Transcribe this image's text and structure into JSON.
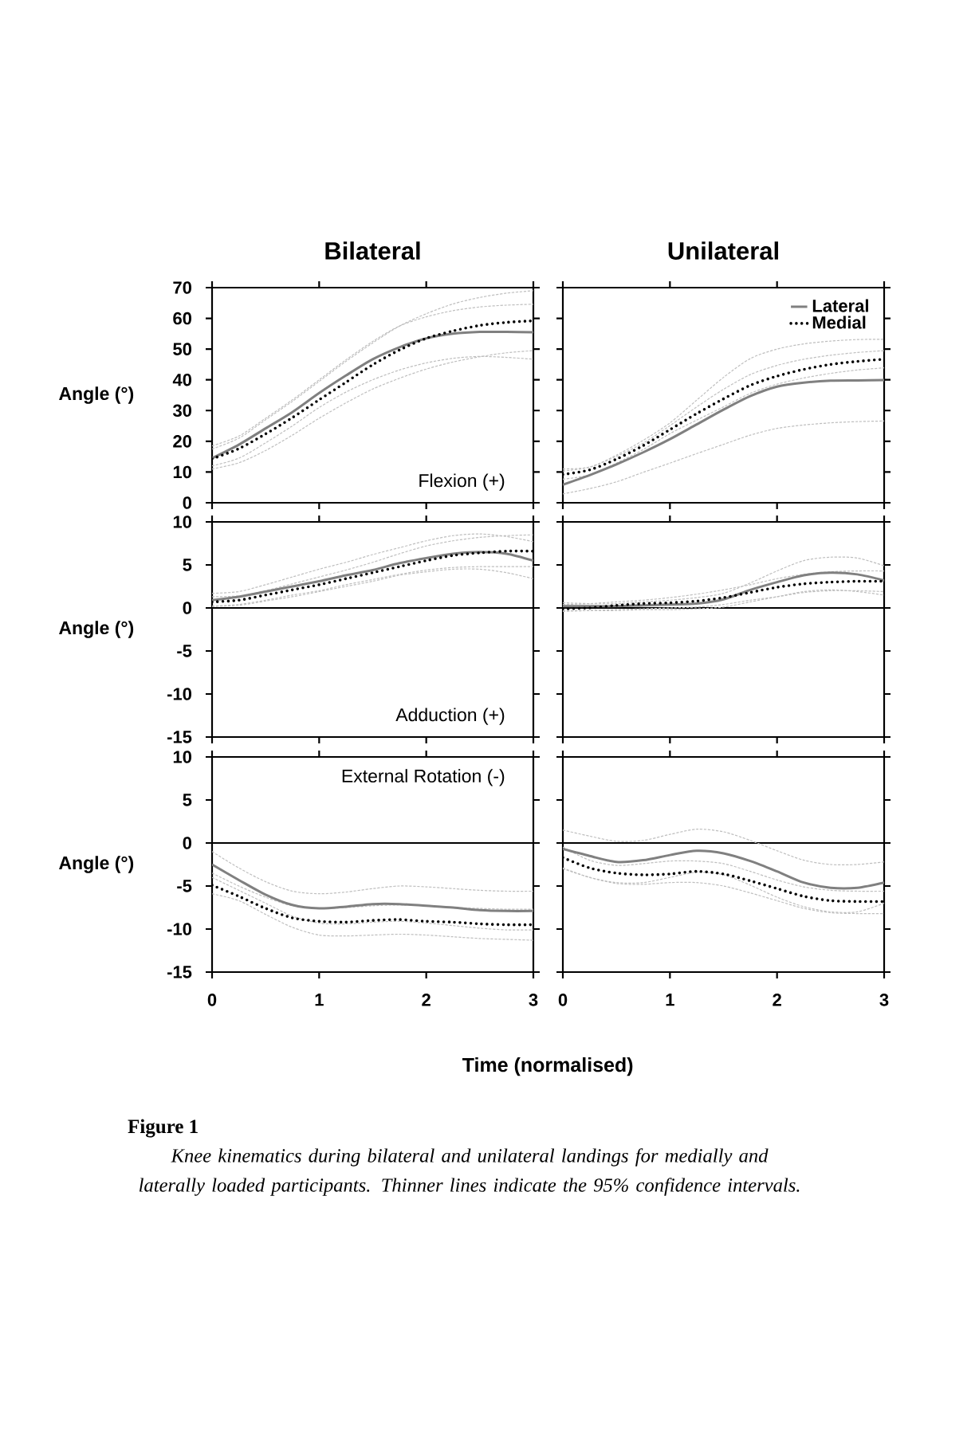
{
  "chart_data": [
    {
      "type": "line",
      "title": "Bilateral",
      "ylabel": "Angle (°)",
      "annotations": [
        "Flexion (+)"
      ],
      "x": [
        0,
        0.25,
        0.5,
        0.75,
        1,
        1.25,
        1.5,
        1.75,
        2,
        2.25,
        2.5,
        2.75,
        3
      ],
      "xlim": [
        0,
        3
      ],
      "xticks": [
        0,
        1,
        2,
        3
      ],
      "ylim": [
        0,
        70
      ],
      "yticks": [
        0,
        10,
        20,
        30,
        40,
        50,
        60,
        70
      ],
      "tick_labels": "y",
      "series": [
        {
          "color": "#bfbfbf",
          "line_style": "dashed",
          "values": [
            18.5,
            21.7,
            27.5,
            33.5,
            40,
            46.5,
            52.5,
            57.5,
            60.5,
            62.5,
            63.7,
            64.3,
            64.6
          ]
        },
        {
          "color": "#bfbfbf",
          "line_style": "dashed",
          "values": [
            12,
            14.5,
            19.5,
            25,
            31,
            36,
            40,
            43.2,
            45.5,
            47,
            47.6,
            47.3,
            46.7
          ]
        },
        {
          "color": "#bfbfbf",
          "line_style": "dashed",
          "values": [
            17.5,
            21,
            27,
            33,
            39.5,
            46,
            52,
            57.5,
            61.5,
            64.7,
            66.8,
            68.2,
            69
          ]
        },
        {
          "color": "#bfbfbf",
          "line_style": "dashed",
          "values": [
            11,
            13,
            17,
            22,
            27.5,
            32.5,
            37,
            40.5,
            43.5,
            45.8,
            47.5,
            48.8,
            49.5
          ]
        },
        {
          "color": "#808080",
          "line_style": "solid",
          "values": [
            14.5,
            18.9,
            24.2,
            29.5,
            35.7,
            41.4,
            46.7,
            50.6,
            53.5,
            55,
            55.6,
            55.6,
            55.5
          ]
        },
        {
          "color": "#000000",
          "line_style": "dotted",
          "values": [
            14.3,
            17.6,
            22.4,
            27.7,
            33.5,
            39.2,
            44.9,
            49.7,
            53.5,
            55.9,
            57.7,
            58.7,
            59.2
          ]
        }
      ]
    },
    {
      "type": "line",
      "title": "Unilateral",
      "x": [
        0,
        0.25,
        0.5,
        0.75,
        1,
        1.25,
        1.5,
        1.75,
        2,
        2.25,
        2.5,
        2.75,
        3
      ],
      "xlim": [
        0,
        3
      ],
      "xticks": [
        0,
        1,
        2,
        3
      ],
      "ylim": [
        0,
        70
      ],
      "yticks": [
        0,
        10,
        20,
        30,
        40,
        50,
        60,
        70
      ],
      "tick_labels": false,
      "legend": "top right",
      "series": [
        {
          "color": "#bfbfbf",
          "line_style": "dashed",
          "values": [
            11,
            11.6,
            15.5,
            20.3,
            26,
            33.4,
            40.8,
            46.9,
            50,
            51.7,
            52.6,
            53.1,
            53.2
          ]
        },
        {
          "color": "#bfbfbf",
          "line_style": "dashed",
          "values": [
            2.9,
            4.6,
            6.8,
            9.9,
            12.9,
            16,
            19,
            22,
            24.2,
            25.3,
            26,
            26.4,
            26.6
          ]
        },
        {
          "color": "#bfbfbf",
          "line_style": "dashed",
          "values": [
            10.3,
            11.6,
            15.1,
            19.4,
            25.1,
            31.2,
            36.9,
            41.7,
            44.7,
            46.7,
            48,
            48.9,
            49.5
          ]
        },
        {
          "color": "#bfbfbf",
          "line_style": "dashed",
          "values": [
            7.7,
            9,
            12.9,
            17.3,
            22.5,
            26.9,
            31.2,
            35.6,
            38.6,
            40.6,
            42.1,
            43.2,
            43.9
          ]
        },
        {
          "name": "Lateral",
          "color": "#808080",
          "line_style": "solid",
          "values": [
            5.9,
            9.0,
            12.5,
            16.4,
            20.7,
            25.5,
            30.3,
            34.7,
            37.8,
            39.1,
            39.7,
            39.8,
            39.9
          ]
        },
        {
          "name": "Medial",
          "color": "#000000",
          "line_style": "dotted",
          "values": [
            9.2,
            10.7,
            14.2,
            18.6,
            23.8,
            29.0,
            33.8,
            38.2,
            41.2,
            43.4,
            45,
            46,
            46.7
          ]
        }
      ]
    },
    {
      "type": "line",
      "ylabel": "Angle (°)",
      "annotations": [
        "Adduction (+)"
      ],
      "x": [
        0,
        0.25,
        0.5,
        0.75,
        1,
        1.25,
        1.5,
        1.75,
        2,
        2.25,
        2.5,
        2.75,
        3
      ],
      "xlim": [
        0,
        3
      ],
      "xticks": [
        0,
        1,
        2,
        3
      ],
      "ylim": [
        -15,
        10
      ],
      "yticks": [
        -15,
        -10,
        -5,
        0,
        5,
        10
      ],
      "tick_labels": "y",
      "ref_lines": [
        {
          "axis": "y",
          "value": 0,
          "color": "#000000"
        }
      ],
      "series": [
        {
          "color": "#bfbfbf",
          "line_style": "dashed",
          "values": [
            1.7,
            1.9,
            2.7,
            3.6,
            4.5,
            5.3,
            6.2,
            7.0,
            7.8,
            8.4,
            8.6,
            8.3,
            7.7
          ]
        },
        {
          "color": "#bfbfbf",
          "line_style": "dashed",
          "values": [
            0.2,
            0.3,
            0.8,
            1.3,
            1.9,
            2.5,
            3.1,
            3.8,
            4.2,
            4.5,
            4.5,
            4.1,
            3.4
          ]
        },
        {
          "color": "#bfbfbf",
          "line_style": "dashed",
          "values": [
            1.3,
            1.4,
            2.0,
            2.8,
            3.6,
            4.4,
            5.3,
            6.3,
            7.2,
            7.8,
            8.2,
            8.4,
            8.5
          ]
        },
        {
          "color": "#bfbfbf",
          "line_style": "dashed",
          "values": [
            0.2,
            0.4,
            0.9,
            1.5,
            2.0,
            2.7,
            3.3,
            3.9,
            4.4,
            4.7,
            4.8,
            4.8,
            4.8
          ]
        },
        {
          "color": "#808080",
          "line_style": "solid",
          "values": [
            0.9,
            1.3,
            1.9,
            2.5,
            3.1,
            3.8,
            4.4,
            5.2,
            5.8,
            6.3,
            6.5,
            6.3,
            5.5
          ]
        },
        {
          "color": "#000000",
          "line_style": "dotted",
          "values": [
            0.7,
            0.9,
            1.5,
            2.1,
            2.7,
            3.4,
            4.1,
            4.8,
            5.5,
            6.1,
            6.4,
            6.6,
            6.6
          ]
        }
      ]
    },
    {
      "type": "line",
      "x": [
        0,
        0.25,
        0.5,
        0.75,
        1,
        1.25,
        1.5,
        1.75,
        2,
        2.25,
        2.5,
        2.75,
        3
      ],
      "xlim": [
        0,
        3
      ],
      "xticks": [
        0,
        1,
        2,
        3
      ],
      "ylim": [
        -15,
        10
      ],
      "yticks": [
        -15,
        -10,
        -5,
        0,
        5,
        10
      ],
      "tick_labels": false,
      "ref_lines": [
        {
          "axis": "y",
          "value": 0,
          "color": "#000000"
        }
      ],
      "series": [
        {
          "color": "#bfbfbf",
          "line_style": "dashed",
          "values": [
            0.6,
            0.5,
            0.5,
            0.7,
            0.9,
            1.2,
            1.7,
            2.9,
            4.3,
            5.5,
            5.9,
            5.8,
            4.9
          ]
        },
        {
          "color": "#bfbfbf",
          "line_style": "dashed",
          "values": [
            -0.3,
            -0.3,
            -0.3,
            -0.2,
            -0.2,
            -0.1,
            0.1,
            0.7,
            1.3,
            1.9,
            2.1,
            1.9,
            1.5
          ]
        },
        {
          "color": "#bfbfbf",
          "line_style": "dashed",
          "values": [
            0.4,
            0.5,
            0.7,
            0.9,
            1.2,
            1.6,
            2.1,
            2.7,
            3.4,
            3.9,
            4.2,
            4.3,
            4.3
          ]
        },
        {
          "color": "#bfbfbf",
          "line_style": "dashed",
          "values": [
            -0.4,
            -0.3,
            -0.2,
            -0.1,
            0,
            0.1,
            0.4,
            0.9,
            1.3,
            1.8,
            2.0,
            2.0,
            1.9
          ]
        },
        {
          "color": "#808080",
          "line_style": "solid",
          "values": [
            0.2,
            0.2,
            0.2,
            0.3,
            0.4,
            0.5,
            1.0,
            2.1,
            3.0,
            3.8,
            4.1,
            3.9,
            3.2
          ]
        },
        {
          "color": "#000000",
          "line_style": "dotted",
          "values": [
            -0.1,
            0,
            0.3,
            0.5,
            0.6,
            0.8,
            1.2,
            1.8,
            2.4,
            2.8,
            3.0,
            3.1,
            3.1
          ]
        }
      ]
    },
    {
      "type": "line",
      "ylabel": "Angle (°)",
      "xlabel": "Time (normalised)",
      "annotations": [
        "External Rotation (-)",
        "**Figure 1**",
        "Knee kinematics during bilateral and unilateral landings for medially and laterally loaded participants. Thinner lines indicate the 95% confidence intervals."
      ],
      "x": [
        0,
        0.25,
        0.5,
        0.75,
        1,
        1.25,
        1.5,
        1.75,
        2,
        2.25,
        2.5,
        2.75,
        3
      ],
      "xlim": [
        0,
        3
      ],
      "xticks": [
        0,
        1,
        2,
        3
      ],
      "ylim": [
        -15,
        10
      ],
      "yticks": [
        -15,
        -10,
        -5,
        0,
        5,
        10
      ],
      "ref_lines": [
        {
          "axis": "y",
          "value": 0,
          "color": "#000000"
        }
      ],
      "series": [
        {
          "color": "#bfbfbf",
          "line_style": "dashed",
          "values": [
            -1.0,
            -2.9,
            -4.5,
            -5.6,
            -5.9,
            -5.7,
            -5.3,
            -5.0,
            -5.1,
            -5.3,
            -5.5,
            -5.6,
            -5.6
          ]
        },
        {
          "color": "#bfbfbf",
          "line_style": "dashed",
          "values": [
            -4.0,
            -5.5,
            -7.0,
            -8.5,
            -9.3,
            -9.4,
            -9.2,
            -9.1,
            -9.3,
            -9.6,
            -9.9,
            -10.1,
            -10.1
          ]
        },
        {
          "color": "#bfbfbf",
          "line_style": "dashed",
          "values": [
            -3.5,
            -5.0,
            -6.3,
            -7.3,
            -7.6,
            -7.5,
            -7.3,
            -7.2,
            -7.3,
            -7.5,
            -7.6,
            -7.7,
            -7.7
          ]
        },
        {
          "color": "#bfbfbf",
          "line_style": "dashed",
          "values": [
            -5.9,
            -6.7,
            -8.3,
            -9.8,
            -10.7,
            -10.8,
            -10.7,
            -10.6,
            -10.7,
            -10.9,
            -11.1,
            -11.2,
            -11.3
          ]
        },
        {
          "color": "#808080",
          "line_style": "solid",
          "values": [
            -2.5,
            -4.3,
            -6.0,
            -7.2,
            -7.6,
            -7.4,
            -7.1,
            -7.1,
            -7.3,
            -7.5,
            -7.8,
            -7.9,
            -7.9
          ]
        },
        {
          "color": "#000000",
          "line_style": "dotted",
          "values": [
            -4.9,
            -6.2,
            -7.6,
            -8.7,
            -9.1,
            -9.2,
            -9.0,
            -8.9,
            -9.1,
            -9.2,
            -9.4,
            -9.5,
            -9.5
          ]
        }
      ]
    },
    {
      "type": "line",
      "x": [
        0,
        0.25,
        0.5,
        0.75,
        1,
        1.25,
        1.5,
        1.75,
        2,
        2.25,
        2.5,
        2.75,
        3
      ],
      "xlim": [
        0,
        3
      ],
      "xticks": [
        0,
        1,
        2,
        3
      ],
      "ylim": [
        -15,
        10
      ],
      "yticks": [
        -15,
        -10,
        -5,
        0,
        5,
        10
      ],
      "tick_labels": "x",
      "ref_lines": [
        {
          "axis": "y",
          "value": 0,
          "color": "#000000"
        }
      ],
      "series": [
        {
          "color": "#bfbfbf",
          "line_style": "dashed",
          "values": [
            1.5,
            0.8,
            0.2,
            0.3,
            1.0,
            1.6,
            1.3,
            0.3,
            -0.9,
            -2.0,
            -2.5,
            -2.5,
            -2.2
          ]
        },
        {
          "color": "#bfbfbf",
          "line_style": "dashed",
          "values": [
            -2.9,
            -4.0,
            -4.6,
            -4.6,
            -4.0,
            -3.4,
            -3.7,
            -4.9,
            -6.3,
            -7.4,
            -8.0,
            -8.0,
            -7.0
          ]
        },
        {
          "color": "#bfbfbf",
          "line_style": "dashed",
          "values": [
            -0.5,
            -2.0,
            -2.6,
            -2.4,
            -2.1,
            -2.1,
            -2.4,
            -3.3,
            -4.3,
            -5.1,
            -5.5,
            -5.6,
            -5.6
          ]
        },
        {
          "color": "#bfbfbf",
          "line_style": "dashed",
          "values": [
            -3.0,
            -4.0,
            -4.7,
            -4.8,
            -4.6,
            -4.6,
            -5.0,
            -5.8,
            -6.7,
            -7.6,
            -8.1,
            -8.2,
            -8.2
          ]
        },
        {
          "color": "#808080",
          "line_style": "solid",
          "values": [
            -0.7,
            -1.5,
            -2.2,
            -2.0,
            -1.4,
            -0.9,
            -1.2,
            -2.1,
            -3.3,
            -4.6,
            -5.2,
            -5.2,
            -4.6
          ]
        },
        {
          "color": "#000000",
          "line_style": "dotted",
          "values": [
            -1.7,
            -2.9,
            -3.5,
            -3.7,
            -3.6,
            -3.3,
            -3.6,
            -4.4,
            -5.3,
            -6.2,
            -6.7,
            -6.8,
            -6.8
          ]
        }
      ]
    }
  ]
}
